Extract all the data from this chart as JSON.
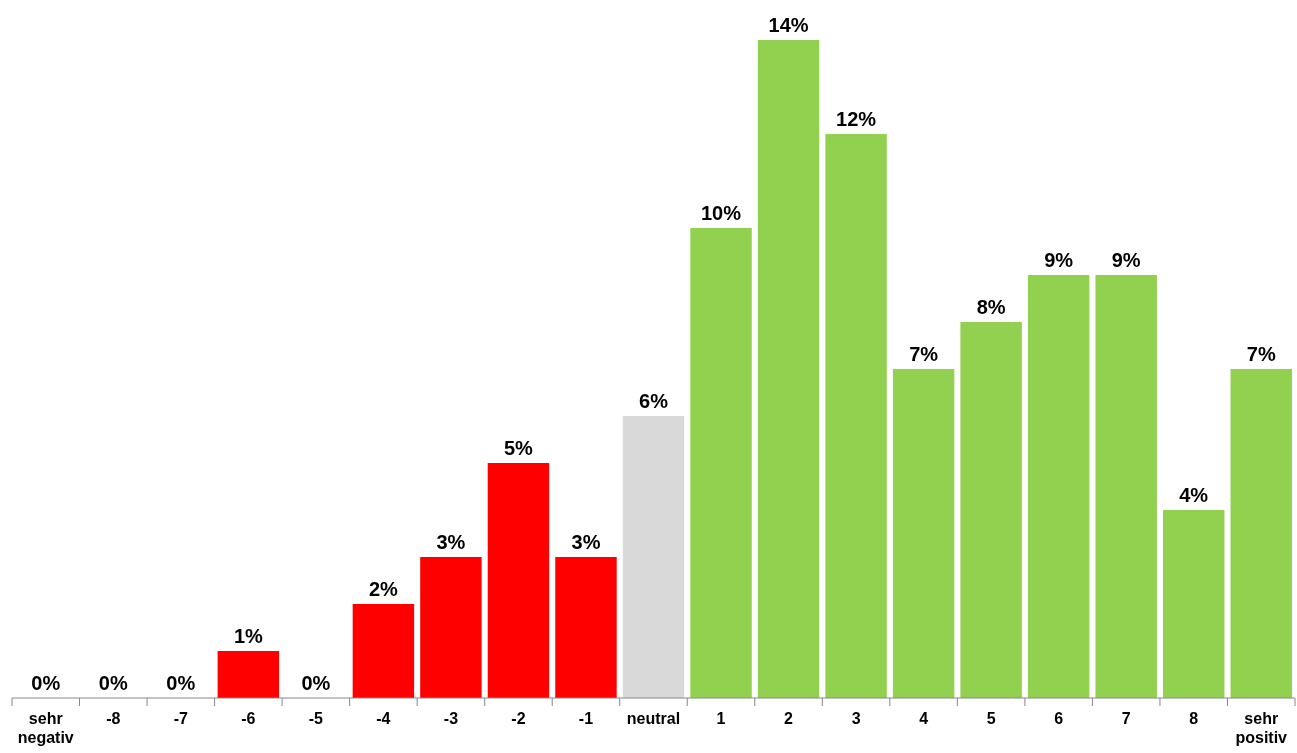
{
  "chart_data": {
    "type": "bar",
    "categories": [
      "sehr negativ",
      "-8",
      "-7",
      "-6",
      "-5",
      "-4",
      "-3",
      "-2",
      "-1",
      "neutral",
      "1",
      "2",
      "3",
      "4",
      "5",
      "6",
      "7",
      "8",
      "sehr positiv"
    ],
    "values": [
      0,
      0,
      0,
      1,
      0,
      2,
      3,
      5,
      3,
      6,
      10,
      14,
      12,
      7,
      8,
      9,
      9,
      4,
      7
    ],
    "colors": [
      "#ff0000",
      "#ff0000",
      "#ff0000",
      "#ff0000",
      "#ff0000",
      "#ff0000",
      "#ff0000",
      "#ff0000",
      "#ff0000",
      "#d9d9d9",
      "#92d050",
      "#92d050",
      "#92d050",
      "#92d050",
      "#92d050",
      "#92d050",
      "#92d050",
      "#92d050",
      "#92d050"
    ],
    "value_labels": [
      "0%",
      "0%",
      "0%",
      "1%",
      "0%",
      "2%",
      "3%",
      "5%",
      "3%",
      "6%",
      "10%",
      "14%",
      "12%",
      "7%",
      "8%",
      "9%",
      "9%",
      "4%",
      "7%"
    ]
  }
}
